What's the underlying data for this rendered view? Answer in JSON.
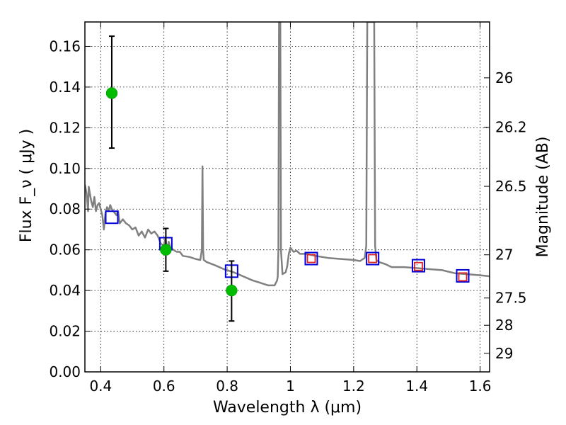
{
  "chart_data": {
    "type": "scatter",
    "title": "",
    "xlabel": "Wavelength  λ (μm)",
    "ylabel": "Flux  F_ν  ( μJy )",
    "y2label": "Magnitude (AB)",
    "xlim": [
      0.35,
      1.63
    ],
    "ylim": [
      0.0,
      0.172
    ],
    "grid": true,
    "xticks": [
      {
        "v": 0.4,
        "label": "0.4"
      },
      {
        "v": 0.6,
        "label": "0.6"
      },
      {
        "v": 0.8,
        "label": "0.8"
      },
      {
        "v": 1.0,
        "label": "1"
      },
      {
        "v": 1.2,
        "label": "1.2"
      },
      {
        "v": 1.4,
        "label": "1.4"
      },
      {
        "v": 1.6,
        "label": "1.6"
      }
    ],
    "yticks": [
      {
        "v": 0.0,
        "label": "0.00"
      },
      {
        "v": 0.02,
        "label": "0.02"
      },
      {
        "v": 0.04,
        "label": "0.04"
      },
      {
        "v": 0.06,
        "label": "0.06"
      },
      {
        "v": 0.08,
        "label": "0.08"
      },
      {
        "v": 0.1,
        "label": "0.10"
      },
      {
        "v": 0.12,
        "label": "0.12"
      },
      {
        "v": 0.14,
        "label": "0.14"
      },
      {
        "v": 0.16,
        "label": "0.16"
      }
    ],
    "mag_ticks": [
      {
        "mag": 26,
        "label": "26"
      },
      {
        "mag": 26.2,
        "label": "26.2"
      },
      {
        "mag": 26.5,
        "label": "26.5"
      },
      {
        "mag": 27,
        "label": "27"
      },
      {
        "mag": 27.5,
        "label": "27.5"
      },
      {
        "mag": 28,
        "label": "28"
      },
      {
        "mag": 29,
        "label": "29"
      }
    ],
    "series": [
      {
        "kind": "observed",
        "color": "#00bb00",
        "points": [
          {
            "x": 0.435,
            "y": 0.137,
            "ylo": 0.11,
            "yhi": 0.165
          },
          {
            "x": 0.606,
            "y": 0.06,
            "ylo": 0.0495,
            "yhi": 0.0705
          },
          {
            "x": 0.814,
            "y": 0.04,
            "ylo": 0.025,
            "yhi": 0.0545
          }
        ]
      },
      {
        "kind": "model_blue_squares",
        "color": "#0000dd",
        "points": [
          {
            "x": 0.435,
            "y": 0.076
          },
          {
            "x": 0.606,
            "y": 0.063
          },
          {
            "x": 0.814,
            "y": 0.0495
          },
          {
            "x": 1.066,
            "y": 0.0557
          },
          {
            "x": 1.26,
            "y": 0.0557
          },
          {
            "x": 1.405,
            "y": 0.0522
          },
          {
            "x": 1.545,
            "y": 0.0472
          }
        ]
      },
      {
        "kind": "model_red_squares",
        "color": "#dd2222",
        "points": [
          {
            "x": 1.066,
            "y": 0.0557
          },
          {
            "x": 1.26,
            "y": 0.0557
          },
          {
            "x": 1.405,
            "y": 0.0518
          },
          {
            "x": 1.545,
            "y": 0.0467
          }
        ]
      },
      {
        "kind": "sed_model",
        "color": "#808080",
        "line": [
          [
            0.35,
            0.092
          ],
          [
            0.355,
            0.088
          ],
          [
            0.36,
            0.079
          ],
          [
            0.362,
            0.091
          ],
          [
            0.37,
            0.084
          ],
          [
            0.375,
            0.081
          ],
          [
            0.38,
            0.086
          ],
          [
            0.385,
            0.079
          ],
          [
            0.39,
            0.082
          ],
          [
            0.395,
            0.083
          ],
          [
            0.4,
            0.08
          ],
          [
            0.405,
            0.077
          ],
          [
            0.41,
            0.07
          ],
          [
            0.415,
            0.078
          ],
          [
            0.42,
            0.081
          ],
          [
            0.425,
            0.079
          ],
          [
            0.43,
            0.082
          ],
          [
            0.435,
            0.08
          ],
          [
            0.44,
            0.079
          ],
          [
            0.45,
            0.077
          ],
          [
            0.455,
            0.079
          ],
          [
            0.46,
            0.073
          ],
          [
            0.47,
            0.075
          ],
          [
            0.48,
            0.073
          ],
          [
            0.49,
            0.072
          ],
          [
            0.5,
            0.07
          ],
          [
            0.51,
            0.071
          ],
          [
            0.52,
            0.067
          ],
          [
            0.53,
            0.069
          ],
          [
            0.54,
            0.066
          ],
          [
            0.55,
            0.07
          ],
          [
            0.56,
            0.068
          ],
          [
            0.57,
            0.069
          ],
          [
            0.58,
            0.067
          ],
          [
            0.59,
            0.063
          ],
          [
            0.6,
            0.062
          ],
          [
            0.605,
            0.066
          ],
          [
            0.61,
            0.059
          ],
          [
            0.615,
            0.064
          ],
          [
            0.62,
            0.061
          ],
          [
            0.63,
            0.06
          ],
          [
            0.64,
            0.059
          ],
          [
            0.65,
            0.059
          ],
          [
            0.66,
            0.057
          ],
          [
            0.68,
            0.0565
          ],
          [
            0.7,
            0.0555
          ],
          [
            0.715,
            0.055
          ],
          [
            0.72,
            0.06
          ],
          [
            0.722,
            0.101
          ],
          [
            0.724,
            0.06
          ],
          [
            0.726,
            0.055
          ],
          [
            0.735,
            0.054
          ],
          [
            0.76,
            0.0525
          ],
          [
            0.79,
            0.0505
          ],
          [
            0.82,
            0.049
          ],
          [
            0.85,
            0.047
          ],
          [
            0.88,
            0.045
          ],
          [
            0.9,
            0.044
          ],
          [
            0.93,
            0.0425
          ],
          [
            0.95,
            0.0425
          ],
          [
            0.958,
            0.045
          ],
          [
            0.96,
            0.047
          ],
          [
            0.962,
            0.06
          ],
          [
            0.964,
            0.172
          ],
          [
            0.968,
            0.172
          ],
          [
            0.97,
            0.06
          ],
          [
            0.975,
            0.048
          ],
          [
            0.985,
            0.049
          ],
          [
            0.99,
            0.052
          ],
          [
            0.995,
            0.058
          ],
          [
            1.0,
            0.061
          ],
          [
            1.01,
            0.059
          ],
          [
            1.02,
            0.0595
          ],
          [
            1.03,
            0.058
          ],
          [
            1.05,
            0.058
          ],
          [
            1.08,
            0.057
          ],
          [
            1.12,
            0.056
          ],
          [
            1.16,
            0.0555
          ],
          [
            1.2,
            0.055
          ],
          [
            1.22,
            0.0545
          ],
          [
            1.235,
            0.056
          ],
          [
            1.24,
            0.062
          ],
          [
            1.243,
            0.172
          ],
          [
            1.265,
            0.172
          ],
          [
            1.268,
            0.062
          ],
          [
            1.272,
            0.055
          ],
          [
            1.28,
            0.054
          ],
          [
            1.3,
            0.053
          ],
          [
            1.32,
            0.0515
          ],
          [
            1.36,
            0.0515
          ],
          [
            1.4,
            0.051
          ],
          [
            1.44,
            0.0505
          ],
          [
            1.48,
            0.05
          ],
          [
            1.52,
            0.0485
          ],
          [
            1.56,
            0.048
          ],
          [
            1.6,
            0.0475
          ],
          [
            1.63,
            0.047
          ]
        ]
      }
    ]
  }
}
